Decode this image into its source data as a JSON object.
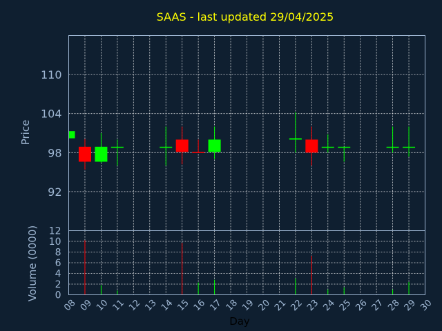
{
  "chart_data": [
    {
      "type": "candlestick",
      "title": "SAAS - last updated 29/04/2025",
      "ylabel": "Price",
      "xlabel": "Day",
      "ylim": [
        86,
        116
      ],
      "yticks": [
        "110",
        "104",
        "98",
        "92"
      ],
      "ytick_values": [
        110,
        104,
        98,
        92
      ],
      "x_ticks": [
        "08",
        "09",
        "10",
        "11",
        "12",
        "13",
        "14",
        "15",
        "16",
        "17",
        "18",
        "19",
        "20",
        "21",
        "22",
        "23",
        "24",
        "25",
        "26",
        "27",
        "28",
        "29",
        "30"
      ],
      "grid": true,
      "colors": {
        "up": "#00ff00",
        "down": "#ff0000",
        "background": "#0f1f30",
        "title": "#ffff00",
        "axis": "#9fb7d3"
      },
      "candles": [
        {
          "day": "08",
          "open": 100.2,
          "high": 101.3,
          "low": 100.2,
          "close": 101.3
        },
        {
          "day": "09",
          "open": 98.9,
          "high": 100.1,
          "low": 95.4,
          "close": 96.6
        },
        {
          "day": "10",
          "open": 96.6,
          "high": 101.0,
          "low": 96.4,
          "close": 98.9
        },
        {
          "day": "11",
          "open": 98.8,
          "high": 100.0,
          "low": 96.0,
          "close": 98.9
        },
        {
          "day": "14",
          "open": 98.9,
          "high": 102.0,
          "low": 96.0,
          "close": 98.9
        },
        {
          "day": "15",
          "open": 100.0,
          "high": 102.0,
          "low": 96.2,
          "close": 98.1
        },
        {
          "day": "16",
          "open": 98.1,
          "high": 100.0,
          "low": 98.0,
          "close": 98.0
        },
        {
          "day": "17",
          "open": 98.1,
          "high": 102.0,
          "low": 97.0,
          "close": 100.0
        },
        {
          "day": "22",
          "open": 100.0,
          "high": 104.2,
          "low": 98.0,
          "close": 100.2
        },
        {
          "day": "23",
          "open": 100.0,
          "high": 102.0,
          "low": 96.0,
          "close": 98.0
        },
        {
          "day": "24",
          "open": 98.9,
          "high": 100.8,
          "low": 98.0,
          "close": 98.9
        },
        {
          "day": "25",
          "open": 98.8,
          "high": 98.9,
          "low": 96.6,
          "close": 98.9
        },
        {
          "day": "28",
          "open": 98.8,
          "high": 102.0,
          "low": 98.0,
          "close": 98.9
        },
        {
          "day": "29",
          "open": 98.8,
          "high": 102.0,
          "low": 97.4,
          "close": 98.9
        }
      ]
    },
    {
      "type": "bar",
      "ylabel": "Volume (0000)",
      "ylim": [
        0,
        12
      ],
      "yticks": [
        "12",
        "10",
        "8",
        "6",
        "4",
        "2",
        "0"
      ],
      "ytick_values": [
        12,
        10,
        8,
        6,
        4,
        2,
        0
      ],
      "volumes": [
        {
          "day": "09",
          "value": 10.2,
          "direction": "down"
        },
        {
          "day": "10",
          "value": 1.8,
          "direction": "up"
        },
        {
          "day": "11",
          "value": 0.8,
          "direction": "up"
        },
        {
          "day": "15",
          "value": 9.7,
          "direction": "down"
        },
        {
          "day": "16",
          "value": 2.3,
          "direction": "up"
        },
        {
          "day": "17",
          "value": 2.8,
          "direction": "up"
        },
        {
          "day": "22",
          "value": 3.1,
          "direction": "up"
        },
        {
          "day": "23",
          "value": 7.3,
          "direction": "down"
        },
        {
          "day": "24",
          "value": 1.0,
          "direction": "up"
        },
        {
          "day": "25",
          "value": 1.4,
          "direction": "up"
        },
        {
          "day": "28",
          "value": 1.0,
          "direction": "up"
        },
        {
          "day": "29",
          "value": 2.4,
          "direction": "up"
        }
      ]
    }
  ]
}
